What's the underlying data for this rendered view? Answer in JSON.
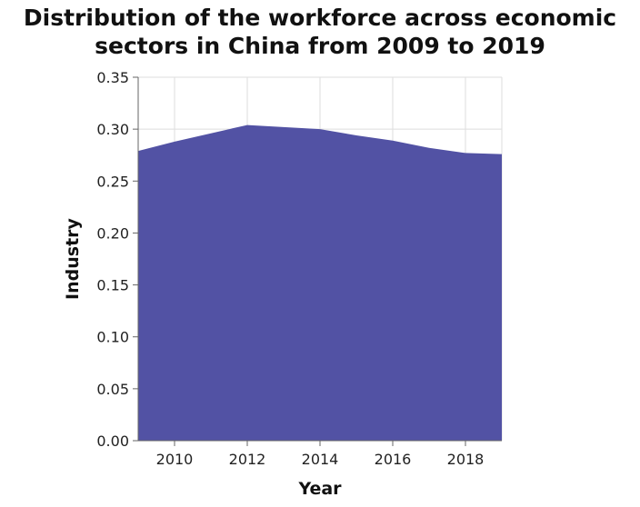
{
  "chart_data": {
    "type": "area",
    "title": "Distribution of the workforce across economic\nsectors in China from 2009 to 2019",
    "xlabel": "Year",
    "ylabel": "Industry",
    "x": [
      2009,
      2010,
      2011,
      2012,
      2013,
      2014,
      2015,
      2016,
      2017,
      2018,
      2019
    ],
    "series": [
      {
        "values": [
          0.279,
          0.288,
          0.296,
          0.304,
          0.302,
          0.3,
          0.294,
          0.289,
          0.282,
          0.277,
          0.276
        ]
      }
    ],
    "xlim": [
      2009,
      2019
    ],
    "ylim": [
      0,
      0.35
    ],
    "xticks": [
      2010,
      2012,
      2014,
      2016,
      2018
    ],
    "xtick_labels": [
      "2010",
      "2012",
      "2014",
      "2016",
      "2018"
    ],
    "yticks": [
      0,
      0.05,
      0.1,
      0.15,
      0.2,
      0.25,
      0.3,
      0.35
    ],
    "ytick_labels": [
      "0.00",
      "0.05",
      "0.10",
      "0.15",
      "0.20",
      "0.25",
      "0.30",
      "0.35"
    ],
    "grid": true,
    "colors": {
      "fill": "#5252a4",
      "grid": "#dddddd",
      "axis": "#666666"
    }
  }
}
